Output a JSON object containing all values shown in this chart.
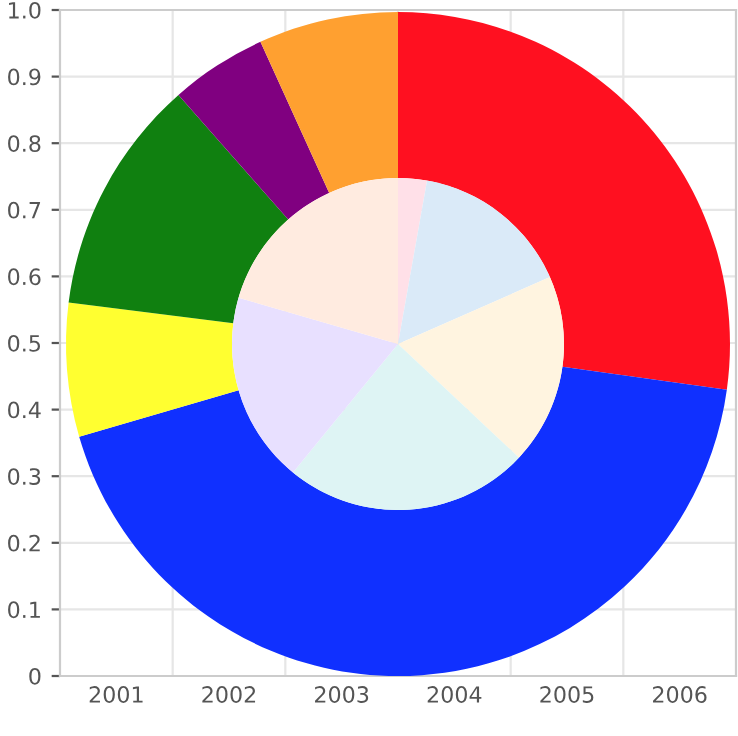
{
  "chart_data": [
    {
      "type": "bar",
      "categories": [
        "2001",
        "2002",
        "2003",
        "2004",
        "2005",
        "2006"
      ],
      "values": [
        null,
        null,
        null,
        null,
        null,
        null
      ],
      "ylim": [
        0,
        1
      ],
      "yticks": [
        0,
        0.1,
        0.2,
        0.3,
        0.4,
        0.5,
        0.6,
        0.7,
        0.8,
        0.9,
        {
          "value": 1,
          "label": "1.0"
        }
      ],
      "grid": true
    },
    {
      "type": "donut",
      "categories": [
        null,
        null,
        null,
        null,
        null,
        null
      ],
      "series": [
        {
          "colors": [
            "#ff1020",
            "#1030ff",
            "#ffff30",
            "#108010",
            "#800080",
            "#ffa030"
          ],
          "values": [
            27.2,
            43.3,
            6.5,
            11.5,
            4.7,
            6.8
          ]
        },
        {
          "colors": [
            "#ffe0e8",
            "#daeaf8",
            "#fff4e0",
            "#def4f4",
            "#e8e0ff",
            "#ffebe0"
          ],
          "values": [
            2.8,
            15.6,
            18.6,
            23.9,
            18.6,
            20.5
          ]
        }
      ]
    }
  ]
}
